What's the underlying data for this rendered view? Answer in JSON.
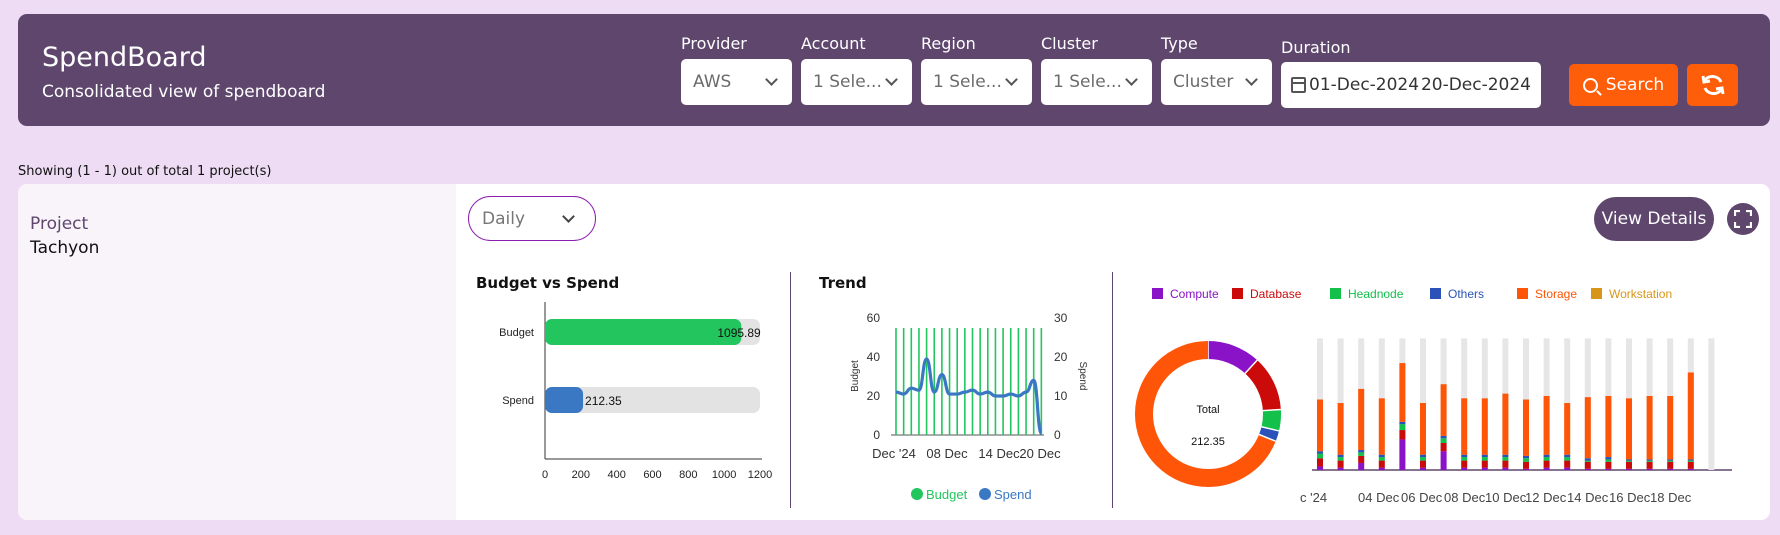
{
  "header": {
    "title": "SpendBoard",
    "subtitle": "Consolidated view of spendboard",
    "filters": [
      {
        "label": "Provider",
        "value": "AWS"
      },
      {
        "label": "Account",
        "value": "1 Sele..."
      },
      {
        "label": "Region",
        "value": "1 Sele..."
      },
      {
        "label": "Cluster",
        "value": "1 Sele..."
      },
      {
        "label": "Type",
        "value": "Cluster"
      }
    ],
    "duration": {
      "label": "Duration",
      "start": "01-Dec-2024",
      "end": "20-Dec-2024"
    },
    "search_label": "Search"
  },
  "showing_text": "Showing (1 - 1) out of total 1 project(s)",
  "project": {
    "label": "Project",
    "name": "Tachyon",
    "period_select": "Daily",
    "view_details_label": "View Details"
  },
  "colors": {
    "header_bg": "#5e466d",
    "accent_orange": "#fe5d09",
    "budget_green": "#22c55e",
    "spend_blue": "#3b78c4"
  },
  "chart_data": [
    {
      "type": "bar",
      "title": "Budget vs Spend",
      "orientation": "horizontal",
      "categories": [
        "Budget",
        "Spend"
      ],
      "values": [
        1095.89,
        212.35
      ],
      "data_labels": [
        "1095.89",
        "212.35"
      ],
      "xlim": [
        0,
        1200
      ],
      "xticks": [
        0,
        200,
        400,
        600,
        800,
        1000,
        1200
      ],
      "colors": [
        "#22c55e",
        "#3b78c4"
      ]
    },
    {
      "type": "line",
      "title": "Trend",
      "ylabel": "Budget",
      "y2label": "Spend",
      "ylim": [
        0,
        60
      ],
      "yticks": [
        0,
        20,
        40,
        60
      ],
      "y2lim": [
        0,
        30
      ],
      "y2ticks": [
        0,
        10,
        20,
        30
      ],
      "xtick_labels": [
        "Dec '24",
        "08 Dec",
        "14 Dec",
        "20 Dec"
      ],
      "legend": [
        "Budget",
        "Spend"
      ],
      "budget_color": "#22c55e",
      "spend_color": "#3b78c4",
      "budget_days": 20,
      "spend_values": [
        11,
        10.5,
        12,
        11.5,
        19.5,
        11,
        15.5,
        10.5,
        10.5,
        11,
        11.5,
        10.5,
        11,
        10,
        10,
        10.5,
        10,
        11,
        14,
        0.5
      ]
    },
    {
      "type": "pie",
      "center_title": "Total",
      "center_value": "212.35",
      "slices": [
        {
          "name": "Compute",
          "value": 25,
          "color": "#8a12c7"
        },
        {
          "name": "Database",
          "value": 26,
          "color": "#cb0a0a"
        },
        {
          "name": "Headnode",
          "value": 10,
          "color": "#12c04a"
        },
        {
          "name": "Others",
          "value": 5,
          "color": "#2b52b8"
        },
        {
          "name": "Storage",
          "value": 146.35,
          "color": "#fe5508"
        },
        {
          "name": "Workstation",
          "value": 0,
          "color": "#d7961a"
        }
      ]
    },
    {
      "type": "bar",
      "stacked": true,
      "legend": [
        "Compute",
        "Database",
        "Headnode",
        "Others",
        "Storage",
        "Workstation"
      ],
      "legend_colors": [
        "#8a12c7",
        "#cb0a0a",
        "#12c04a",
        "#2b52b8",
        "#fe5508",
        "#d7961a"
      ],
      "xtick_labels": [
        "c '24",
        "04 Dec",
        "06 Dec",
        "08 Dec",
        "10 Dec",
        "12 Dec",
        "14 Dec",
        "16 Dec",
        "18 Dec"
      ],
      "ymax": 60,
      "series": [
        {
          "name": "Compute",
          "values": [
            1.5,
            1,
            3,
            1,
            13,
            1,
            8,
            1,
            1,
            1,
            0.5,
            1,
            1,
            0.5,
            0.5,
            0.5,
            0.5,
            0.5,
            0.5,
            0
          ]
        },
        {
          "name": "Database",
          "values": [
            3.5,
            3,
            3,
            3,
            4,
            3,
            3.5,
            3,
            3,
            3,
            3,
            3,
            3,
            3,
            3,
            3,
            3,
            3,
            3,
            0
          ]
        },
        {
          "name": "Headnode",
          "values": [
            2,
            1.5,
            1.5,
            1.5,
            2.5,
            1.5,
            2,
            1.5,
            1.5,
            1.5,
            1.5,
            1.5,
            1.5,
            0.5,
            1,
            0.5,
            0.5,
            0.5,
            0.5,
            0
          ]
        },
        {
          "name": "Others",
          "values": [
            1,
            1,
            1,
            1,
            1,
            1,
            1,
            1,
            1,
            1,
            1,
            1,
            1,
            1,
            1,
            0.5,
            0.5,
            0.5,
            0.5,
            0
          ]
        },
        {
          "name": "Storage",
          "values": [
            22,
            22,
            26,
            24,
            25,
            22,
            22,
            24,
            24,
            26,
            24,
            25,
            22,
            26,
            26,
            26,
            27,
            27,
            37,
            0
          ]
        },
        {
          "name": "Workstation",
          "values": [
            0,
            0,
            0,
            0,
            0,
            0,
            0,
            0,
            0,
            0,
            0,
            0,
            0,
            0,
            0,
            0,
            0,
            0,
            0,
            0
          ]
        }
      ],
      "budget_cap": [
        56,
        56,
        56,
        56,
        56,
        56,
        56,
        56,
        56,
        56,
        56,
        56,
        56,
        56,
        56,
        56,
        56,
        56,
        56,
        56
      ]
    }
  ]
}
